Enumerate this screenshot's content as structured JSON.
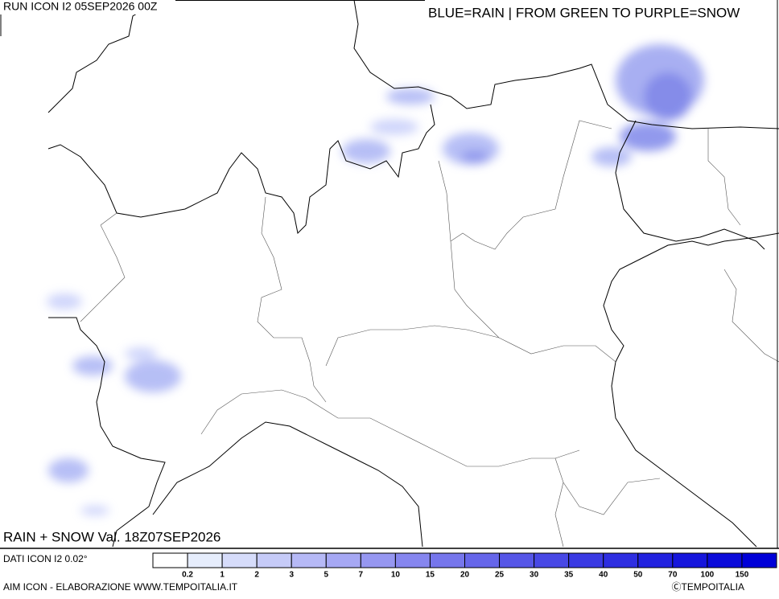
{
  "header": {
    "run": "RUN ICON I2 05SEP2026 00Z",
    "legend_note": "BLUE=RAIN | FROM GREEN TO PURPLE=SNOW"
  },
  "footer": {
    "title": "RAIN + SNOW Val. 18Z07SEP2026",
    "source": "DATI ICON I2 0.02°",
    "credit": "AIM ICON - ELABORAZIONE WWW.TEMPOITALIA.IT",
    "copyright": "ⒸTEMPOITALIA"
  },
  "scale": {
    "ticks": [
      0.2,
      1,
      2,
      3,
      5,
      7,
      10,
      15,
      20,
      25,
      30,
      35,
      40,
      50,
      70,
      100,
      150
    ],
    "colors": [
      "#ffffff",
      "#e6edfc",
      "#d6dcfa",
      "#c6cbf8",
      "#b6b9f6",
      "#a6a8f4",
      "#9697f1",
      "#8686ef",
      "#7676ec",
      "#6666ea",
      "#5656e7",
      "#4848e5",
      "#3a3ae3",
      "#2e2ee1",
      "#2222df",
      "#1616dc",
      "#0b0bda",
      "#0000d8"
    ]
  }
}
